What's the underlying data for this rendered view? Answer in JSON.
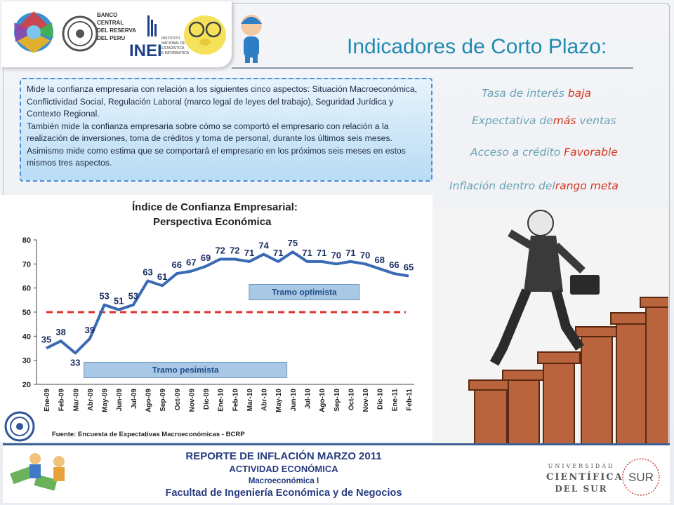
{
  "slide": {
    "title": "Indicadores de Corto Plazo:",
    "logos": {
      "bcrp_line1": "BANCO",
      "bcrp_line2": "CENTRAL",
      "bcrp_line3": "DEL RESERVA",
      "bcrp_line4": "DEL PERU",
      "inei": "INEI",
      "inei_sub1": "INSTITUTO",
      "inei_sub2": "NACIONAL DE",
      "inei_sub3": "ESTADÍSTICA",
      "inei_sub4": "E INFORMÁTICA"
    },
    "description": {
      "paragraph1": "Mide la confianza empresaria con relación a los siguientes cinco aspectos: Situación Macroeconómica, Conflictividad Social,  Regulación Laboral (marco legal de leyes del trabajo), Seguridad Jurídica y Contexto Regional.",
      "paragraph2": "También mide la confianza empresaria  sobre cómo se comportó el empresario con relación a la realización de inversiones, toma de créditos y toma de personal, durante los últimos seis meses.  Asimismo mide como estima que se comportará el empresario en los próximos seis meses en estos mismos tres aspectos."
    },
    "indicators": [
      {
        "label": "Tasa de interés",
        "highlight": "baja"
      },
      {
        "label": "Expectativa de",
        "highlight": "más",
        "suffix": "ventas"
      },
      {
        "label": "Acceso a crédito",
        "highlight": "Favorable"
      },
      {
        "label": "Inflación dentro del",
        "highlight": "rango meta"
      }
    ],
    "footer": {
      "line1": "REPORTE DE INFLACIÓN MARZO 2011",
      "line2": "ACTIVIDAD ECONÓMICA",
      "line3": "Macroeconómica I",
      "line4": "Facultad de Ingeniería Económica y de Negocios",
      "university_line1": "UNIVERSIDAD",
      "university_line2": "CIENTÍFICA",
      "university_line3": "DEL SUR",
      "university_logo": "SUR"
    }
  },
  "chart_data": {
    "type": "line",
    "title": "Índice de Confianza Empresarial:",
    "subtitle": "Perspectiva Económica",
    "categories": [
      "Ene-09",
      "Feb-09",
      "Mar-09",
      "Abr-09",
      "May-09",
      "Jun-09",
      "Jul-09",
      "Ago-09",
      "Sep-09",
      "Oct-09",
      "Nov-09",
      "Dic-09",
      "Ene-10",
      "Feb-10",
      "Mar-10",
      "Abr-10",
      "May-10",
      "Jun-10",
      "Jul-10",
      "Ago-10",
      "Sep-10",
      "Oct-10",
      "Nov-10",
      "Dic-10",
      "Ene-11",
      "Feb-11"
    ],
    "values": [
      35,
      38,
      33,
      39,
      53,
      51,
      53,
      63,
      61,
      66,
      67,
      69,
      72,
      72,
      71,
      74,
      71,
      75,
      71,
      71,
      70,
      71,
      70,
      68,
      66,
      65
    ],
    "yticks": [
      20,
      30,
      40,
      50,
      60,
      70,
      80
    ],
    "ylim": [
      20,
      80
    ],
    "threshold": 50,
    "annotations": [
      "Tramo optimista",
      "Tramo pesimista"
    ],
    "source": "Fuente: Encuesta de Expectativas Macroeconómicas - BCRP",
    "line_color": "#3a6ab4",
    "threshold_color": "#e0302a",
    "grid": false
  }
}
